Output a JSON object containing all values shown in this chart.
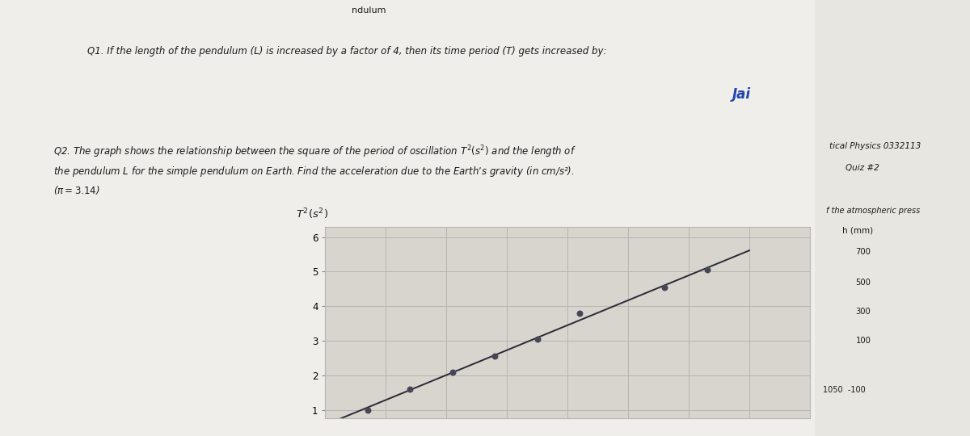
{
  "title_q1": "Q1. If the length of the pendulum (L) is increased by a factor of 4, then its time period (T) gets increased by:",
  "q2_text": "Q2. The graph shows the relationship between the square of the period of oscillation $T^2(s^2)$ and the length of\nthe pendulum $L$ for the simple pendulum on Earth. Find the acceleration due to the Earth’s gravity (in cm/s²).\n($\\pi = 3. 14$)",
  "side_text1": "tical Physics 0332113",
  "side_text2": "Quiz #2",
  "side_text3": "f the atmospheric press",
  "side_text4": "h (mm)",
  "side_values": [
    "700",
    "500",
    "300",
    "100"
  ],
  "side_bottom": "1050  -100",
  "ylabel": "$T^2(s^2)$",
  "jai_text": "Jai",
  "yticks": [
    1,
    2,
    3,
    4,
    5,
    6
  ],
  "ylim": [
    0.75,
    6.3
  ],
  "xlim": [
    0,
    8
  ],
  "data_x": [
    0.7,
    1.4,
    2.1,
    2.8,
    3.5,
    4.2,
    5.6,
    6.3
  ],
  "data_y": [
    1.0,
    1.6,
    2.1,
    2.55,
    3.05,
    3.8,
    4.55,
    5.05
  ],
  "line_x": [
    0.3,
    7.0
  ],
  "line_y_start": 0.55,
  "line_y_end": 5.55,
  "line_color": "#2a2a35",
  "dot_color": "#464656",
  "bg_color": "#e8e6e0",
  "paper_color": "#f0eeea",
  "plot_bg": "#d8d5cf",
  "grid_color": "#b8b5b0",
  "text_color": "#1a1a1a",
  "handwriting_color": "#2244aa",
  "num_vert_lines": 9
}
